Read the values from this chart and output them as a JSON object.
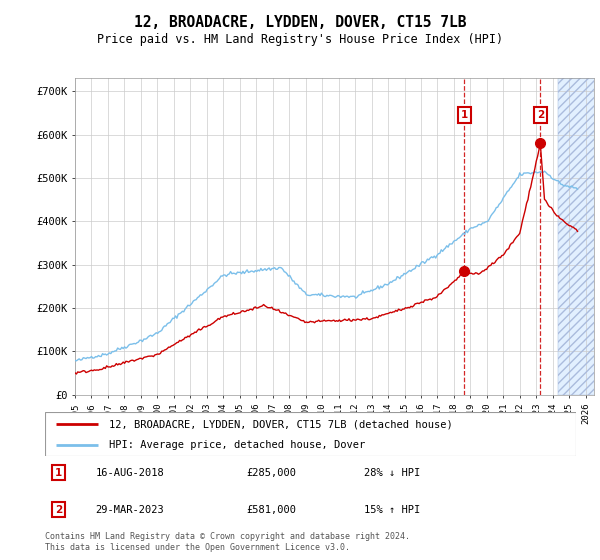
{
  "title": "12, BROADACRE, LYDDEN, DOVER, CT15 7LB",
  "subtitle": "Price paid vs. HM Land Registry's House Price Index (HPI)",
  "ylabel_ticks": [
    "£0",
    "£100K",
    "£200K",
    "£300K",
    "£400K",
    "£500K",
    "£600K",
    "£700K"
  ],
  "ytick_vals": [
    0,
    100000,
    200000,
    300000,
    400000,
    500000,
    600000,
    700000
  ],
  "ylim": [
    0,
    730000
  ],
  "xlim_start": 1995.0,
  "xlim_end": 2026.5,
  "hpi_color": "#7bbfea",
  "price_color": "#cc0000",
  "grid_color": "#cccccc",
  "marker1_date": 2018.625,
  "marker1_price": 285000,
  "marker2_date": 2023.24,
  "marker2_price": 581000,
  "future_start": 2024.3,
  "legend_line1": "12, BROADACRE, LYDDEN, DOVER, CT15 7LB (detached house)",
  "legend_line2": "HPI: Average price, detached house, Dover",
  "annotation1_label": "16-AUG-2018",
  "annotation1_price": "£285,000",
  "annotation1_hpi": "28% ↓ HPI",
  "annotation2_label": "29-MAR-2023",
  "annotation2_price": "£581,000",
  "annotation2_hpi": "15% ↑ HPI",
  "footer": "Contains HM Land Registry data © Crown copyright and database right 2024.\nThis data is licensed under the Open Government Licence v3.0.",
  "xtick_years": [
    1995,
    1996,
    1997,
    1998,
    1999,
    2000,
    2001,
    2002,
    2003,
    2004,
    2005,
    2006,
    2007,
    2008,
    2009,
    2010,
    2011,
    2012,
    2013,
    2014,
    2015,
    2016,
    2017,
    2018,
    2019,
    2020,
    2021,
    2022,
    2023,
    2024,
    2025,
    2026
  ]
}
